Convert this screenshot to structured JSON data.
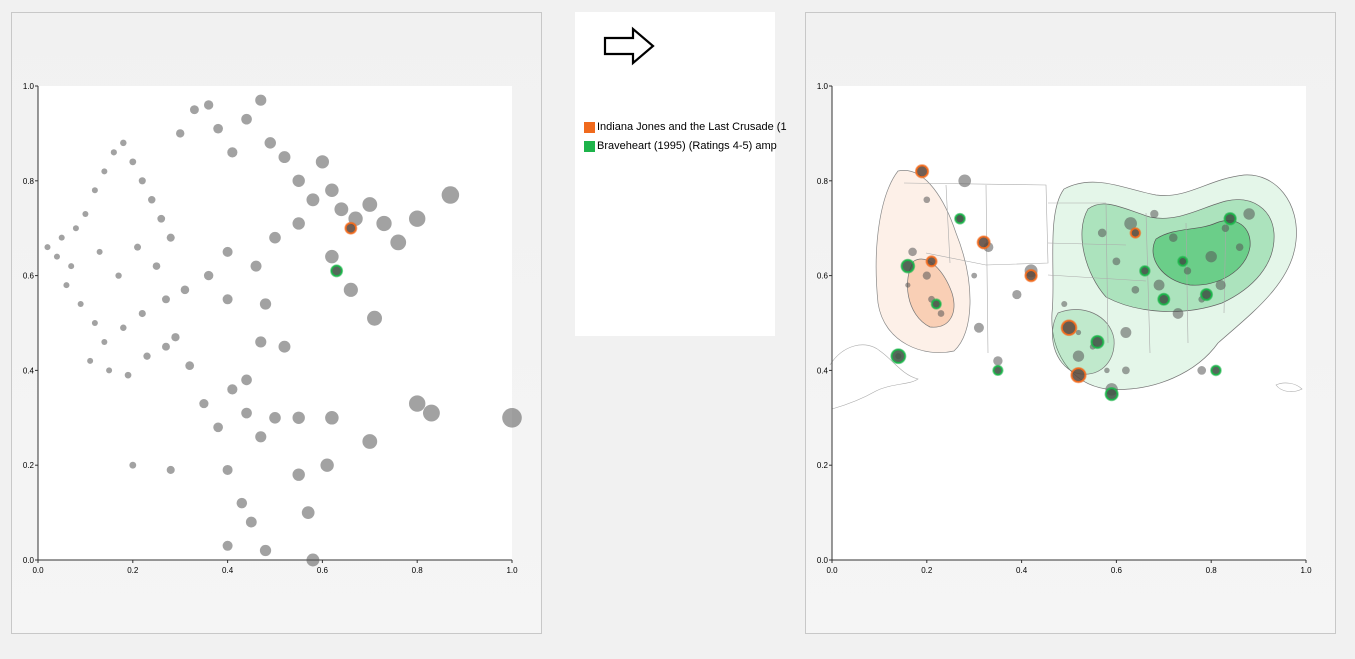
{
  "colors": {
    "series_a": "#f06a1d",
    "series_b": "#1db34a",
    "point": "#555555",
    "panel_border": "#c8c8c8"
  },
  "icons": {
    "arrow": "right-arrow-icon"
  },
  "legend": {
    "items": [
      {
        "label": "Indiana Jones and the Last Crusade (1",
        "color": "#f06a1d"
      },
      {
        "label": "Braveheart (1995) (Ratings 4-5) amp",
        "color": "#1db34a"
      }
    ]
  },
  "chart_data": [
    {
      "type": "scatter",
      "xlim": [
        0,
        1
      ],
      "ylim": [
        0,
        1
      ],
      "xticks": [
        "0.0",
        "0.2",
        "0.4",
        "0.6",
        "0.8",
        "1.0"
      ],
      "yticks": [
        "0.0",
        "0.2",
        "0.4",
        "0.6",
        "0.8",
        "1.0"
      ],
      "grid": false,
      "points": [
        {
          "x": 0.02,
          "y": 0.66
        },
        {
          "x": 0.04,
          "y": 0.64
        },
        {
          "x": 0.05,
          "y": 0.68
        },
        {
          "x": 0.07,
          "y": 0.62
        },
        {
          "x": 0.08,
          "y": 0.7
        },
        {
          "x": 0.1,
          "y": 0.73
        },
        {
          "x": 0.12,
          "y": 0.78
        },
        {
          "x": 0.14,
          "y": 0.82
        },
        {
          "x": 0.16,
          "y": 0.86
        },
        {
          "x": 0.18,
          "y": 0.88
        },
        {
          "x": 0.2,
          "y": 0.84
        },
        {
          "x": 0.22,
          "y": 0.8
        },
        {
          "x": 0.24,
          "y": 0.76
        },
        {
          "x": 0.26,
          "y": 0.72
        },
        {
          "x": 0.28,
          "y": 0.68
        },
        {
          "x": 0.3,
          "y": 0.9
        },
        {
          "x": 0.33,
          "y": 0.95
        },
        {
          "x": 0.36,
          "y": 0.96
        },
        {
          "x": 0.38,
          "y": 0.91
        },
        {
          "x": 0.41,
          "y": 0.86
        },
        {
          "x": 0.44,
          "y": 0.93
        },
        {
          "x": 0.47,
          "y": 0.97
        },
        {
          "x": 0.49,
          "y": 0.88
        },
        {
          "x": 0.52,
          "y": 0.85
        },
        {
          "x": 0.55,
          "y": 0.8
        },
        {
          "x": 0.58,
          "y": 0.76
        },
        {
          "x": 0.6,
          "y": 0.84
        },
        {
          "x": 0.62,
          "y": 0.78
        },
        {
          "x": 0.64,
          "y": 0.74
        },
        {
          "x": 0.67,
          "y": 0.72
        },
        {
          "x": 0.7,
          "y": 0.75
        },
        {
          "x": 0.73,
          "y": 0.71
        },
        {
          "x": 0.76,
          "y": 0.67
        },
        {
          "x": 0.8,
          "y": 0.72
        },
        {
          "x": 0.87,
          "y": 0.77
        },
        {
          "x": 0.66,
          "y": 0.57
        },
        {
          "x": 0.71,
          "y": 0.51
        },
        {
          "x": 0.62,
          "y": 0.64
        },
        {
          "x": 0.55,
          "y": 0.71
        },
        {
          "x": 0.5,
          "y": 0.68
        },
        {
          "x": 0.46,
          "y": 0.62
        },
        {
          "x": 0.4,
          "y": 0.65
        },
        {
          "x": 0.36,
          "y": 0.6
        },
        {
          "x": 0.31,
          "y": 0.57
        },
        {
          "x": 0.27,
          "y": 0.55
        },
        {
          "x": 0.22,
          "y": 0.52
        },
        {
          "x": 0.18,
          "y": 0.49
        },
        {
          "x": 0.14,
          "y": 0.46
        },
        {
          "x": 0.12,
          "y": 0.5
        },
        {
          "x": 0.09,
          "y": 0.54
        },
        {
          "x": 0.06,
          "y": 0.58
        },
        {
          "x": 0.11,
          "y": 0.42
        },
        {
          "x": 0.15,
          "y": 0.4
        },
        {
          "x": 0.19,
          "y": 0.39
        },
        {
          "x": 0.23,
          "y": 0.43
        },
        {
          "x": 0.27,
          "y": 0.45
        },
        {
          "x": 0.29,
          "y": 0.47
        },
        {
          "x": 0.32,
          "y": 0.41
        },
        {
          "x": 0.35,
          "y": 0.33
        },
        {
          "x": 0.38,
          "y": 0.28
        },
        {
          "x": 0.41,
          "y": 0.36
        },
        {
          "x": 0.44,
          "y": 0.31
        },
        {
          "x": 0.47,
          "y": 0.26
        },
        {
          "x": 0.5,
          "y": 0.3
        },
        {
          "x": 0.55,
          "y": 0.3
        },
        {
          "x": 0.62,
          "y": 0.3
        },
        {
          "x": 0.7,
          "y": 0.25
        },
        {
          "x": 0.8,
          "y": 0.33
        },
        {
          "x": 0.83,
          "y": 0.31
        },
        {
          "x": 1.0,
          "y": 0.3
        },
        {
          "x": 0.2,
          "y": 0.2
        },
        {
          "x": 0.28,
          "y": 0.19
        },
        {
          "x": 0.4,
          "y": 0.19
        },
        {
          "x": 0.55,
          "y": 0.18
        },
        {
          "x": 0.61,
          "y": 0.2
        },
        {
          "x": 0.43,
          "y": 0.12
        },
        {
          "x": 0.45,
          "y": 0.08
        },
        {
          "x": 0.57,
          "y": 0.1
        },
        {
          "x": 0.4,
          "y": 0.03
        },
        {
          "x": 0.48,
          "y": 0.02
        },
        {
          "x": 0.58,
          "y": 0.0
        },
        {
          "x": 0.44,
          "y": 0.38
        },
        {
          "x": 0.47,
          "y": 0.46
        },
        {
          "x": 0.52,
          "y": 0.45
        },
        {
          "x": 0.4,
          "y": 0.55
        },
        {
          "x": 0.48,
          "y": 0.54
        },
        {
          "x": 0.25,
          "y": 0.62
        },
        {
          "x": 0.21,
          "y": 0.66
        },
        {
          "x": 0.17,
          "y": 0.6
        },
        {
          "x": 0.13,
          "y": 0.65
        }
      ],
      "highlights": [
        {
          "x": 0.66,
          "y": 0.7,
          "series": "Indiana Jones and the Last Crusade (1"
        },
        {
          "x": 0.63,
          "y": 0.61,
          "series": "Braveheart (1995) (Ratings 4-5) amp"
        }
      ]
    },
    {
      "type": "scatter",
      "xlim": [
        0,
        1
      ],
      "ylim": [
        0,
        1
      ],
      "xticks": [
        "0.0",
        "0.2",
        "0.4",
        "0.6",
        "0.8",
        "1.0"
      ],
      "yticks": [
        "0.0",
        "0.2",
        "0.4",
        "0.6",
        "0.8",
        "1.0"
      ],
      "grid": false,
      "points": [
        {
          "x": 0.2,
          "y": 0.6
        },
        {
          "x": 0.21,
          "y": 0.55
        },
        {
          "x": 0.16,
          "y": 0.58
        },
        {
          "x": 0.17,
          "y": 0.65
        },
        {
          "x": 0.2,
          "y": 0.76
        },
        {
          "x": 0.27,
          "y": 0.72
        },
        {
          "x": 0.33,
          "y": 0.66
        },
        {
          "x": 0.3,
          "y": 0.6
        },
        {
          "x": 0.23,
          "y": 0.52
        },
        {
          "x": 0.31,
          "y": 0.49
        },
        {
          "x": 0.42,
          "y": 0.61
        },
        {
          "x": 0.39,
          "y": 0.56
        },
        {
          "x": 0.49,
          "y": 0.54
        },
        {
          "x": 0.52,
          "y": 0.48
        },
        {
          "x": 0.55,
          "y": 0.45
        },
        {
          "x": 0.58,
          "y": 0.4
        },
        {
          "x": 0.52,
          "y": 0.43
        },
        {
          "x": 0.59,
          "y": 0.36
        },
        {
          "x": 0.62,
          "y": 0.48
        },
        {
          "x": 0.64,
          "y": 0.57
        },
        {
          "x": 0.6,
          "y": 0.63
        },
        {
          "x": 0.57,
          "y": 0.69
        },
        {
          "x": 0.63,
          "y": 0.71
        },
        {
          "x": 0.68,
          "y": 0.73
        },
        {
          "x": 0.72,
          "y": 0.68
        },
        {
          "x": 0.75,
          "y": 0.61
        },
        {
          "x": 0.78,
          "y": 0.55
        },
        {
          "x": 0.8,
          "y": 0.64
        },
        {
          "x": 0.83,
          "y": 0.7
        },
        {
          "x": 0.86,
          "y": 0.66
        },
        {
          "x": 0.88,
          "y": 0.73
        },
        {
          "x": 0.82,
          "y": 0.58
        },
        {
          "x": 0.73,
          "y": 0.52
        },
        {
          "x": 0.69,
          "y": 0.58
        },
        {
          "x": 0.78,
          "y": 0.4
        },
        {
          "x": 0.62,
          "y": 0.4
        },
        {
          "x": 0.28,
          "y": 0.8
        },
        {
          "x": 0.35,
          "y": 0.42
        },
        {
          "x": 0.14,
          "y": 0.43
        }
      ],
      "highlights": [
        {
          "x": 0.19,
          "y": 0.82,
          "series": "Indiana Jones and the Last Crusade (1"
        },
        {
          "x": 0.21,
          "y": 0.63,
          "series": "Indiana Jones and the Last Crusade (1"
        },
        {
          "x": 0.32,
          "y": 0.67,
          "series": "Indiana Jones and the Last Crusade (1"
        },
        {
          "x": 0.42,
          "y": 0.6,
          "series": "Indiana Jones and the Last Crusade (1"
        },
        {
          "x": 0.5,
          "y": 0.49,
          "series": "Indiana Jones and the Last Crusade (1"
        },
        {
          "x": 0.64,
          "y": 0.69,
          "series": "Indiana Jones and the Last Crusade (1"
        },
        {
          "x": 0.52,
          "y": 0.39,
          "series": "Indiana Jones and the Last Crusade (1"
        },
        {
          "x": 0.22,
          "y": 0.54,
          "series": "Braveheart (1995) (Ratings 4-5) amp"
        },
        {
          "x": 0.27,
          "y": 0.72,
          "series": "Braveheart (1995) (Ratings 4-5) amp"
        },
        {
          "x": 0.16,
          "y": 0.62,
          "series": "Braveheart (1995) (Ratings 4-5) amp"
        },
        {
          "x": 0.56,
          "y": 0.46,
          "series": "Braveheart (1995) (Ratings 4-5) amp"
        },
        {
          "x": 0.59,
          "y": 0.35,
          "series": "Braveheart (1995) (Ratings 4-5) amp"
        },
        {
          "x": 0.74,
          "y": 0.63,
          "series": "Braveheart (1995) (Ratings 4-5) amp"
        },
        {
          "x": 0.79,
          "y": 0.56,
          "series": "Braveheart (1995) (Ratings 4-5) amp"
        },
        {
          "x": 0.84,
          "y": 0.72,
          "series": "Braveheart (1995) (Ratings 4-5) amp"
        },
        {
          "x": 0.7,
          "y": 0.55,
          "series": "Braveheart (1995) (Ratings 4-5) amp"
        },
        {
          "x": 0.66,
          "y": 0.61,
          "series": "Braveheart (1995) (Ratings 4-5) amp"
        },
        {
          "x": 0.81,
          "y": 0.4,
          "series": "Braveheart (1995) (Ratings 4-5) amp"
        },
        {
          "x": 0.35,
          "y": 0.4,
          "series": "Braveheart (1995) (Ratings 4-5) amp"
        },
        {
          "x": 0.14,
          "y": 0.43,
          "series": "Braveheart (1995) (Ratings 4-5) amp"
        }
      ]
    }
  ]
}
